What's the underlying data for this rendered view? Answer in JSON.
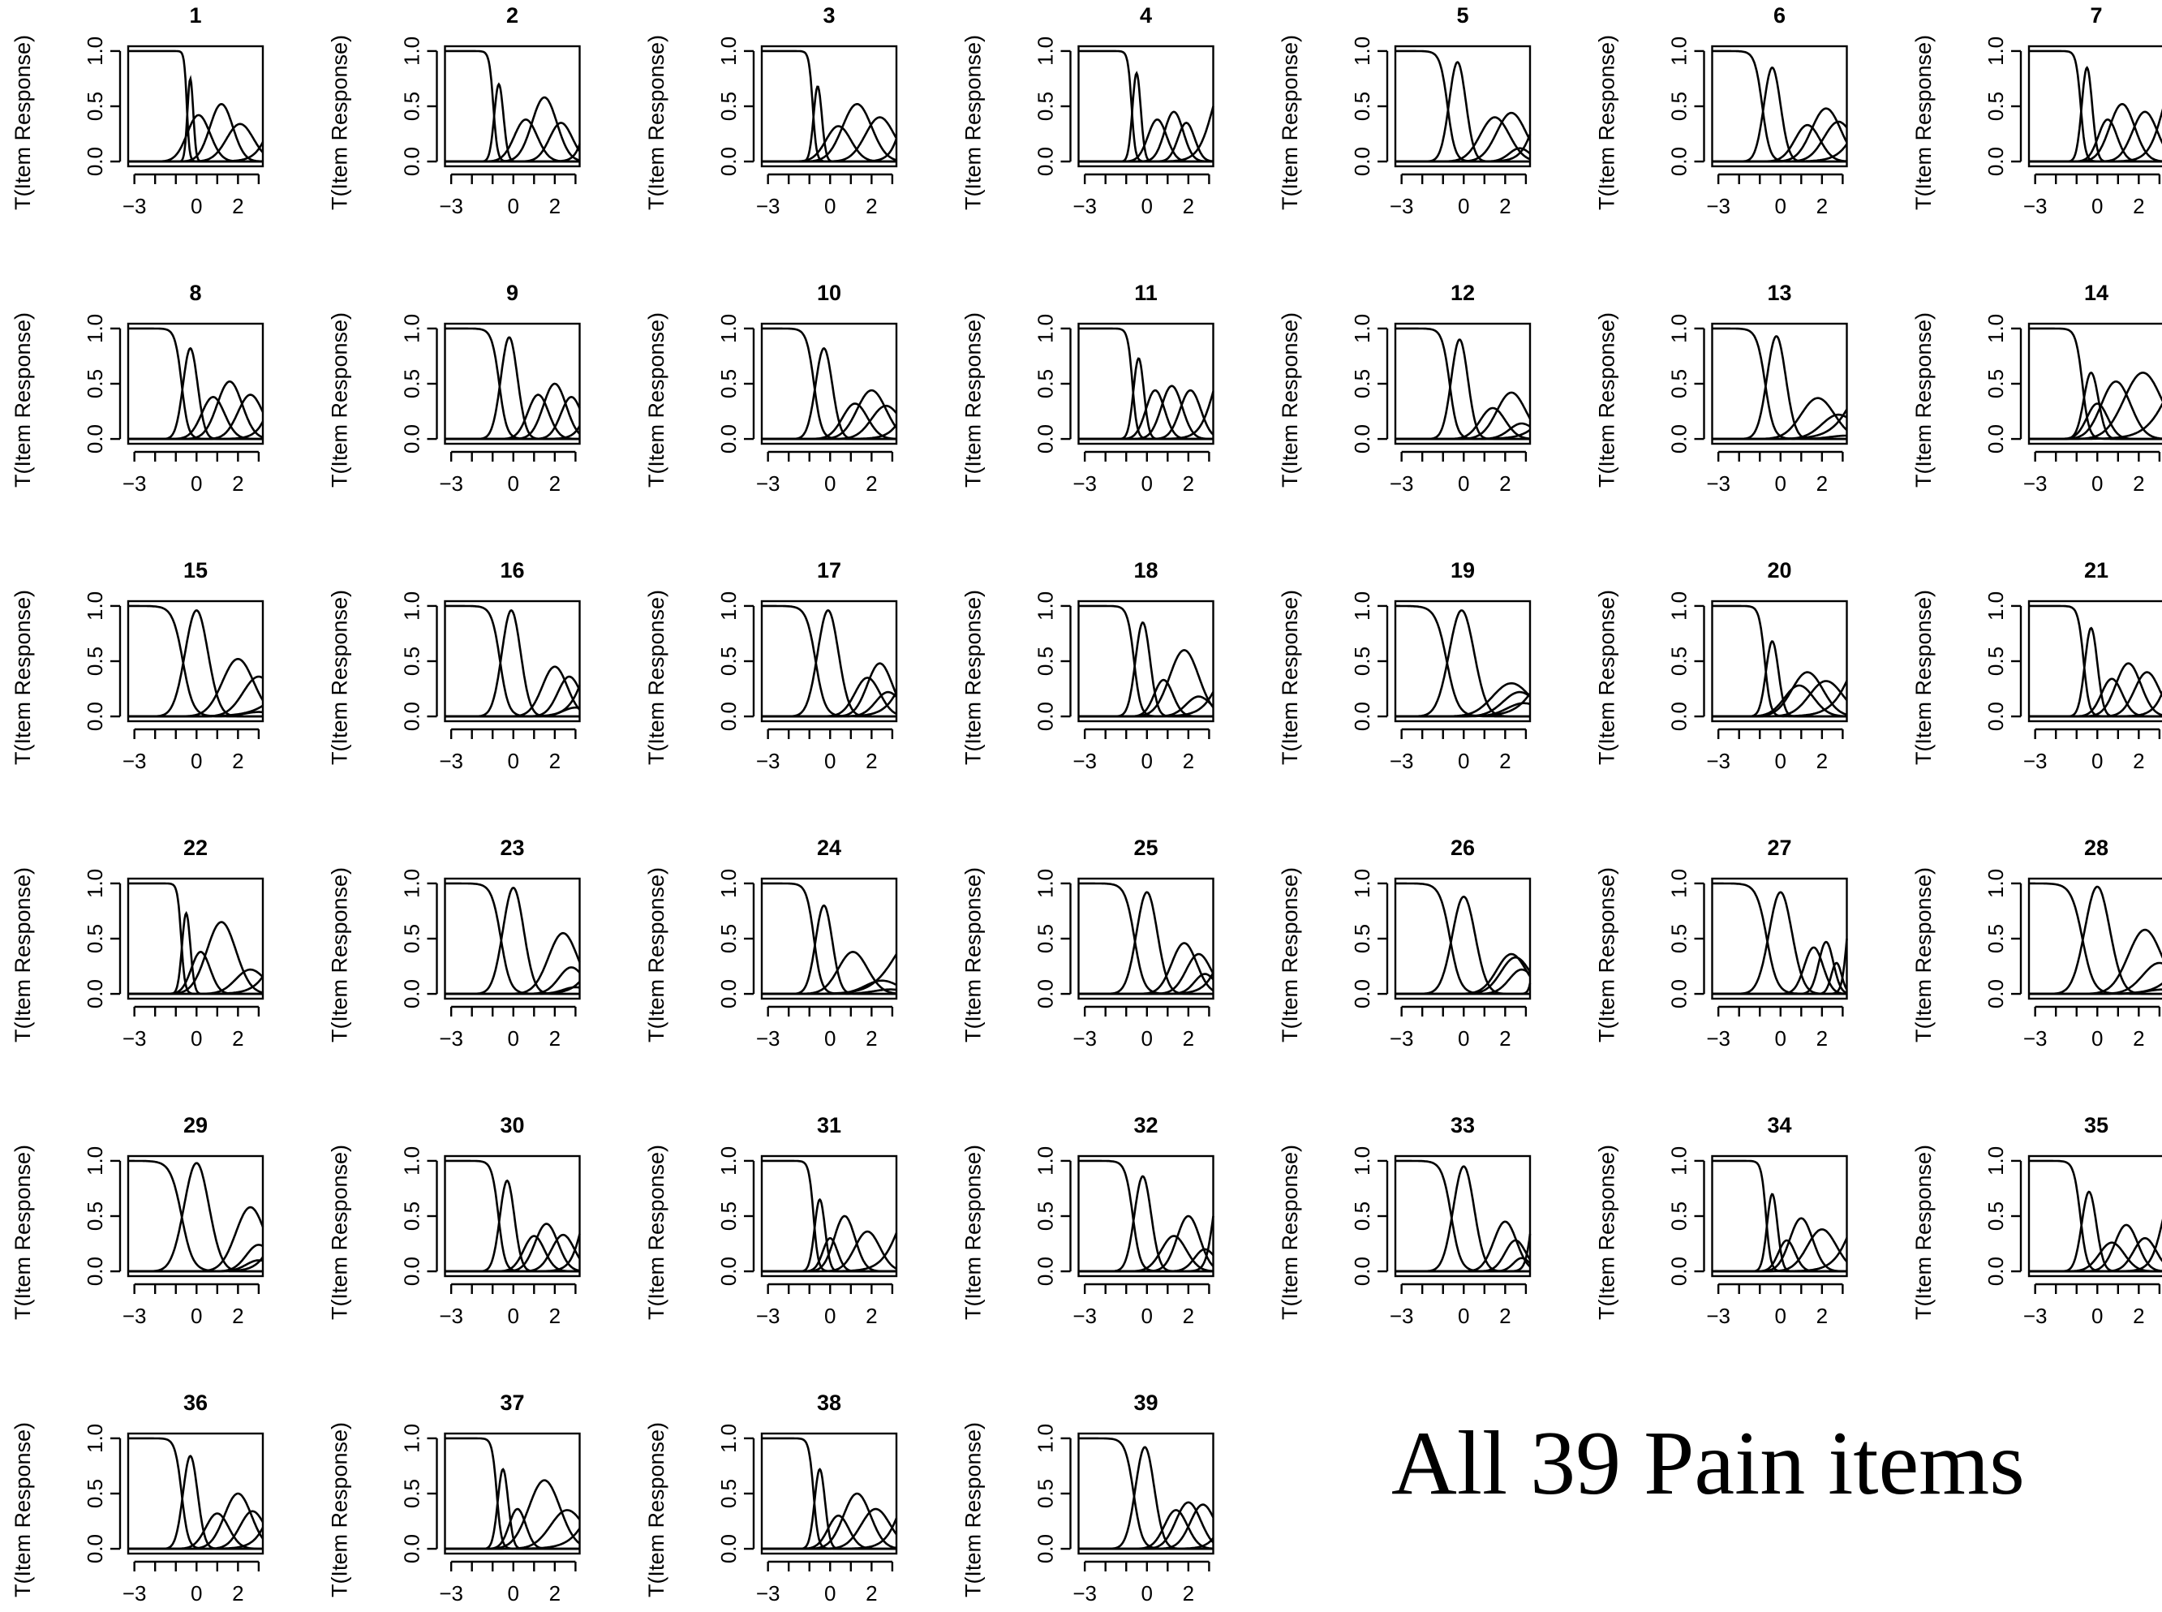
{
  "title": "All 39 Pain items",
  "chart_data": {
    "type": "line",
    "layout": "small-multiples",
    "ylabel": "T(Item Response)",
    "xlim": [
      -3.3,
      3.2
    ],
    "ylim": [
      0,
      1
    ],
    "xticks": [
      -3,
      -2,
      -1,
      0,
      1,
      2,
      3
    ],
    "xtick_labels": [
      "-3",
      "",
      "",
      "0",
      "",
      "2",
      ""
    ],
    "yticks": [
      0,
      0.5,
      1
    ],
    "ytick_labels": [
      "0.0",
      "0.5",
      "1.0"
    ],
    "panels": [
      {
        "label": "1",
        "curves": [
          [
            -0.3,
            0.75,
            0.14
          ],
          [
            0.1,
            0.42,
            0.55
          ],
          [
            1.2,
            0.52,
            0.55
          ],
          [
            2.1,
            0.34,
            0.65
          ],
          [
            3.8,
            1.0,
            0.65
          ]
        ]
      },
      {
        "label": "2",
        "curves": [
          [
            -0.7,
            0.7,
            0.22
          ],
          [
            0.6,
            0.38,
            0.55
          ],
          [
            1.5,
            0.58,
            0.6
          ],
          [
            2.3,
            0.35,
            0.55
          ],
          [
            3.6,
            1.0,
            0.4
          ]
        ]
      },
      {
        "label": "3",
        "curves": [
          [
            -0.6,
            0.68,
            0.2
          ],
          [
            0.4,
            0.32,
            0.6
          ],
          [
            1.3,
            0.52,
            0.7
          ],
          [
            2.4,
            0.4,
            0.7
          ],
          [
            3.6,
            1.0,
            0.5
          ]
        ]
      },
      {
        "label": "4",
        "curves": [
          [
            -0.5,
            0.8,
            0.2
          ],
          [
            0.5,
            0.38,
            0.45
          ],
          [
            1.3,
            0.45,
            0.45
          ],
          [
            1.9,
            0.35,
            0.4
          ],
          [
            3.2,
            1.0,
            0.6
          ]
        ]
      },
      {
        "label": "5",
        "curves": [
          [
            -0.3,
            0.9,
            0.4
          ],
          [
            1.5,
            0.4,
            0.7
          ],
          [
            2.3,
            0.44,
            0.7
          ],
          [
            2.7,
            0.12,
            0.5
          ],
          [
            3.6,
            1.0,
            0.6
          ]
        ]
      },
      {
        "label": "6",
        "curves": [
          [
            -0.4,
            0.85,
            0.4
          ],
          [
            1.3,
            0.33,
            0.6
          ],
          [
            2.2,
            0.48,
            0.7
          ],
          [
            2.8,
            0.36,
            0.7
          ],
          [
            4.0,
            1.0,
            0.8
          ]
        ]
      },
      {
        "label": "7",
        "curves": [
          [
            -0.5,
            0.85,
            0.25
          ],
          [
            0.5,
            0.38,
            0.45
          ],
          [
            1.2,
            0.52,
            0.6
          ],
          [
            2.3,
            0.45,
            0.6
          ],
          [
            3.2,
            1.0,
            0.6
          ]
        ]
      },
      {
        "label": "8",
        "curves": [
          [
            -0.3,
            0.82,
            0.35
          ],
          [
            0.8,
            0.38,
            0.55
          ],
          [
            1.6,
            0.52,
            0.6
          ],
          [
            2.6,
            0.4,
            0.6
          ],
          [
            3.8,
            1.0,
            0.6
          ]
        ]
      },
      {
        "label": "9",
        "curves": [
          [
            -0.2,
            0.92,
            0.4
          ],
          [
            1.2,
            0.4,
            0.5
          ],
          [
            2.0,
            0.5,
            0.55
          ],
          [
            2.8,
            0.38,
            0.5
          ],
          [
            3.8,
            1.0,
            0.5
          ]
        ]
      },
      {
        "label": "10",
        "curves": [
          [
            -0.3,
            0.82,
            0.4
          ],
          [
            1.2,
            0.32,
            0.6
          ],
          [
            2.0,
            0.44,
            0.7
          ],
          [
            2.7,
            0.3,
            0.7
          ],
          [
            4.0,
            1.0,
            0.7
          ]
        ]
      },
      {
        "label": "11",
        "curves": [
          [
            -0.4,
            0.73,
            0.25
          ],
          [
            0.4,
            0.44,
            0.45
          ],
          [
            1.2,
            0.48,
            0.5
          ],
          [
            2.1,
            0.44,
            0.5
          ],
          [
            3.3,
            1.0,
            0.6
          ]
        ]
      },
      {
        "label": "12",
        "curves": [
          [
            -0.2,
            0.9,
            0.4
          ],
          [
            1.4,
            0.28,
            0.6
          ],
          [
            2.3,
            0.42,
            0.7
          ],
          [
            2.8,
            0.14,
            0.6
          ],
          [
            4.5,
            1.0,
            0.9
          ]
        ]
      },
      {
        "label": "13",
        "curves": [
          [
            -0.2,
            0.93,
            0.45
          ],
          [
            1.8,
            0.37,
            0.8
          ],
          [
            2.8,
            0.22,
            0.8
          ],
          [
            3.2,
            0.03,
            0.8
          ],
          [
            3.8,
            1.0,
            1.0
          ]
        ]
      },
      {
        "label": "14",
        "curves": [
          [
            -0.3,
            0.6,
            0.35
          ],
          [
            0.0,
            0.32,
            0.5
          ],
          [
            0.9,
            0.52,
            0.7
          ],
          [
            2.2,
            0.6,
            0.9
          ],
          [
            3.6,
            1.0,
            1.0
          ]
        ]
      },
      {
        "label": "15",
        "curves": [
          [
            0.0,
            0.96,
            0.55
          ],
          [
            2.0,
            0.52,
            0.75
          ],
          [
            3.0,
            0.36,
            0.75
          ],
          [
            3.0,
            0.04,
            0.7
          ],
          [
            4.8,
            1.0,
            1.2
          ]
        ]
      },
      {
        "label": "16",
        "curves": [
          [
            -0.1,
            0.96,
            0.45
          ],
          [
            2.0,
            0.45,
            0.6
          ],
          [
            2.7,
            0.36,
            0.55
          ],
          [
            3.0,
            0.08,
            0.6
          ],
          [
            3.6,
            1.0,
            0.7
          ]
        ]
      },
      {
        "label": "17",
        "curves": [
          [
            -0.1,
            0.96,
            0.5
          ],
          [
            1.8,
            0.35,
            0.6
          ],
          [
            2.4,
            0.48,
            0.6
          ],
          [
            2.8,
            0.22,
            0.6
          ],
          [
            3.8,
            1.0,
            0.8
          ]
        ]
      },
      {
        "label": "18",
        "curves": [
          [
            -0.2,
            0.85,
            0.35
          ],
          [
            0.8,
            0.33,
            0.45
          ],
          [
            1.8,
            0.6,
            0.7
          ],
          [
            2.5,
            0.18,
            0.6
          ],
          [
            3.8,
            1.0,
            0.8
          ]
        ]
      },
      {
        "label": "19",
        "curves": [
          [
            -0.1,
            0.96,
            0.6
          ],
          [
            2.3,
            0.3,
            0.9
          ],
          [
            2.7,
            0.22,
            0.8
          ],
          [
            2.9,
            0.12,
            0.8
          ],
          [
            4.0,
            1.0,
            1.0
          ]
        ]
      },
      {
        "label": "20",
        "curves": [
          [
            -0.4,
            0.68,
            0.3
          ],
          [
            0.9,
            0.28,
            0.7
          ],
          [
            1.3,
            0.4,
            0.75
          ],
          [
            2.2,
            0.32,
            0.8
          ],
          [
            3.6,
            1.0,
            0.9
          ]
        ]
      },
      {
        "label": "21",
        "curves": [
          [
            -0.3,
            0.8,
            0.3
          ],
          [
            0.7,
            0.34,
            0.5
          ],
          [
            1.5,
            0.48,
            0.6
          ],
          [
            2.4,
            0.4,
            0.6
          ],
          [
            3.6,
            1.0,
            0.6
          ]
        ]
      },
      {
        "label": "22",
        "curves": [
          [
            -0.5,
            0.73,
            0.2
          ],
          [
            0.2,
            0.38,
            0.45
          ],
          [
            1.2,
            0.65,
            0.7
          ],
          [
            2.6,
            0.22,
            0.7
          ],
          [
            4.0,
            1.0,
            0.8
          ]
        ]
      },
      {
        "label": "23",
        "curves": [
          [
            0.0,
            0.96,
            0.5
          ],
          [
            2.4,
            0.55,
            0.7
          ],
          [
            2.8,
            0.24,
            0.6
          ],
          [
            3.0,
            0.06,
            0.6
          ],
          [
            4.2,
            1.0,
            0.8
          ]
        ]
      },
      {
        "label": "24",
        "curves": [
          [
            -0.3,
            0.8,
            0.4
          ],
          [
            1.1,
            0.38,
            0.7
          ],
          [
            2.5,
            0.12,
            0.8
          ],
          [
            2.9,
            0.04,
            0.8
          ],
          [
            3.2,
            0.72,
            1.0
          ]
        ]
      },
      {
        "label": "25",
        "curves": [
          [
            0.0,
            0.92,
            0.5
          ],
          [
            1.8,
            0.46,
            0.6
          ],
          [
            2.5,
            0.36,
            0.6
          ],
          [
            2.8,
            0.18,
            0.5
          ],
          [
            3.8,
            1.0,
            0.7
          ]
        ]
      },
      {
        "label": "26",
        "curves": [
          [
            0.0,
            0.88,
            0.55
          ],
          [
            2.3,
            0.36,
            0.7
          ],
          [
            2.5,
            0.33,
            0.7
          ],
          [
            2.8,
            0.22,
            0.6
          ],
          [
            3.4,
            1.0,
            0.15
          ]
        ]
      },
      {
        "label": "27",
        "curves": [
          [
            0.0,
            0.92,
            0.55
          ],
          [
            1.6,
            0.42,
            0.45
          ],
          [
            2.2,
            0.47,
            0.35
          ],
          [
            2.7,
            0.28,
            0.25
          ],
          [
            3.2,
            1.0,
            0.2
          ]
        ]
      },
      {
        "label": "28",
        "curves": [
          [
            0.0,
            0.97,
            0.6
          ],
          [
            2.3,
            0.58,
            0.8
          ],
          [
            3.0,
            0.28,
            0.8
          ],
          [
            3.2,
            0.04,
            0.8
          ],
          [
            4.5,
            1.0,
            1.0
          ]
        ]
      },
      {
        "label": "29",
        "curves": [
          [
            0.0,
            0.98,
            0.6
          ],
          [
            2.6,
            0.58,
            0.7
          ],
          [
            3.0,
            0.24,
            0.6
          ],
          [
            3.0,
            0.1,
            0.6
          ],
          [
            4.0,
            1.0,
            0.7
          ]
        ]
      },
      {
        "label": "30",
        "curves": [
          [
            -0.3,
            0.82,
            0.35
          ],
          [
            1.0,
            0.32,
            0.5
          ],
          [
            1.6,
            0.43,
            0.55
          ],
          [
            2.4,
            0.33,
            0.55
          ],
          [
            3.4,
            1.0,
            0.5
          ]
        ]
      },
      {
        "label": "31",
        "curves": [
          [
            -0.5,
            0.65,
            0.25
          ],
          [
            0.0,
            0.3,
            0.35
          ],
          [
            0.7,
            0.5,
            0.5
          ],
          [
            1.8,
            0.36,
            0.6
          ],
          [
            3.5,
            1.0,
            0.8
          ]
        ]
      },
      {
        "label": "32",
        "curves": [
          [
            -0.2,
            0.86,
            0.4
          ],
          [
            1.3,
            0.32,
            0.6
          ],
          [
            2.0,
            0.5,
            0.55
          ],
          [
            2.8,
            0.2,
            0.5
          ],
          [
            3.2,
            1.0,
            0.3
          ]
        ]
      },
      {
        "label": "33",
        "curves": [
          [
            0.0,
            0.95,
            0.5
          ],
          [
            2.0,
            0.45,
            0.55
          ],
          [
            2.5,
            0.28,
            0.5
          ],
          [
            2.8,
            0.12,
            0.4
          ],
          [
            3.3,
            1.0,
            0.25
          ]
        ]
      },
      {
        "label": "34",
        "curves": [
          [
            -0.4,
            0.7,
            0.25
          ],
          [
            0.3,
            0.28,
            0.4
          ],
          [
            1.0,
            0.48,
            0.55
          ],
          [
            2.0,
            0.38,
            0.7
          ],
          [
            3.6,
            1.0,
            0.8
          ]
        ]
      },
      {
        "label": "35",
        "curves": [
          [
            -0.4,
            0.72,
            0.35
          ],
          [
            0.7,
            0.26,
            0.6
          ],
          [
            1.4,
            0.42,
            0.55
          ],
          [
            2.3,
            0.3,
            0.55
          ],
          [
            3.2,
            1.0,
            0.5
          ]
        ]
      },
      {
        "label": "36",
        "curves": [
          [
            -0.3,
            0.84,
            0.35
          ],
          [
            1.0,
            0.32,
            0.55
          ],
          [
            2.0,
            0.5,
            0.65
          ],
          [
            2.7,
            0.34,
            0.6
          ],
          [
            3.8,
            1.0,
            0.7
          ]
        ]
      },
      {
        "label": "37",
        "curves": [
          [
            -0.5,
            0.72,
            0.25
          ],
          [
            0.2,
            0.36,
            0.4
          ],
          [
            1.5,
            0.62,
            0.75
          ],
          [
            2.6,
            0.35,
            0.8
          ],
          [
            4.0,
            1.0,
            0.9
          ]
        ]
      },
      {
        "label": "38",
        "curves": [
          [
            -0.5,
            0.72,
            0.25
          ],
          [
            0.4,
            0.3,
            0.5
          ],
          [
            1.3,
            0.5,
            0.65
          ],
          [
            2.2,
            0.36,
            0.7
          ],
          [
            3.6,
            1.0,
            0.7
          ]
        ]
      },
      {
        "label": "39",
        "curves": [
          [
            -0.1,
            0.92,
            0.45
          ],
          [
            1.4,
            0.35,
            0.55
          ],
          [
            2.0,
            0.42,
            0.6
          ],
          [
            2.7,
            0.4,
            0.6
          ],
          [
            4.0,
            1.0,
            0.6
          ]
        ]
      }
    ]
  }
}
